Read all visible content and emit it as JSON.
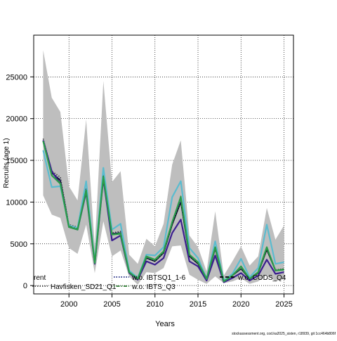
{
  "chart_data": {
    "type": "line",
    "xlabel": "Years",
    "ylabel": "Recruits (age 1)",
    "xlim": [
      1995.9,
      2026.1
    ],
    "ylim": [
      -1000,
      30000
    ],
    "x_ticks": [
      2000,
      2005,
      2010,
      2015,
      2020,
      2025
    ],
    "y_ticks": [
      0,
      5000,
      10000,
      15000,
      20000,
      25000
    ],
    "grid": true,
    "legend_placement": "bottom",
    "x": [
      1997,
      1998,
      1999,
      2000,
      2001,
      2002,
      2003,
      2004,
      2005,
      2006,
      2007,
      2008,
      2009,
      2010,
      2011,
      2012,
      2013,
      2014,
      2015,
      2016,
      2017,
      2018,
      2019,
      2020,
      2021,
      2022,
      2023,
      2024,
      2025
    ],
    "band": {
      "color": "#bebebe",
      "upper": [
        28200,
        22500,
        20800,
        11900,
        10200,
        19900,
        4700,
        24500,
        12400,
        13700,
        3700,
        2600,
        5600,
        4700,
        7400,
        14500,
        17400,
        6000,
        4600,
        1700,
        8900,
        1200,
        2900,
        4700,
        2400,
        3500,
        9300,
        5500,
        7200
      ],
      "lower": [
        10800,
        8500,
        8100,
        4500,
        3800,
        7300,
        1500,
        7700,
        3500,
        4200,
        1100,
        100,
        1600,
        1500,
        2100,
        4700,
        4800,
        1300,
        700,
        200,
        1100,
        300,
        500,
        900,
        200,
        500,
        1300,
        500,
        800
      ]
    },
    "series": [
      {
        "name": "",
        "color": "#000000",
        "dash": "solid",
        "values": [
          17400,
          13500,
          12600,
          7200,
          6900,
          11500,
          2700,
          13200,
          6200,
          6300,
          1600,
          800,
          3300,
          2900,
          3900,
          7300,
          10000,
          3500,
          2600,
          700,
          4400,
          500,
          1200,
          2000,
          800,
          1500,
          4300,
          1800,
          1900
        ]
      },
      {
        "name": "Havfisken_SD21_Q1",
        "color": "#444444",
        "dash": "dotted",
        "values": [
          17600,
          13700,
          13000,
          7300,
          7000,
          11600,
          2800,
          13400,
          6300,
          6500,
          1700,
          900,
          3400,
          3000,
          4000,
          7500,
          10300,
          3600,
          2700,
          800,
          4500,
          600,
          1300,
          2100,
          900,
          1600,
          4600,
          1900,
          2000
        ]
      },
      {
        "name": "w.o. IBTSQ1_1-6",
        "color": "#1a237e",
        "dash": "dotted",
        "values": [
          17300,
          13600,
          12700,
          7200,
          6900,
          11600,
          2700,
          13300,
          6200,
          6400,
          1700,
          800,
          3300,
          2900,
          3900,
          7400,
          10100,
          3500,
          2600,
          700,
          4400,
          500,
          1200,
          2000,
          800,
          1500,
          4400,
          1800,
          1900
        ]
      },
      {
        "name": "w.o. IBTS_Q3",
        "color": "#2e7d32",
        "dash": "dotdash",
        "values": [
          17300,
          13200,
          12300,
          7100,
          6800,
          11400,
          2700,
          13100,
          6100,
          6300,
          1600,
          800,
          3400,
          3000,
          4000,
          7600,
          10700,
          3600,
          2700,
          800,
          4600,
          500,
          1200,
          2100,
          800,
          1500,
          4500,
          1800,
          2000
        ]
      },
      {
        "name": "",
        "color": "#3b1f8f",
        "dash": "solid",
        "values": [
          17400,
          13700,
          12200,
          7000,
          6700,
          11200,
          2600,
          12800,
          5400,
          6000,
          1500,
          700,
          2900,
          2500,
          3300,
          6300,
          7900,
          2900,
          2300,
          600,
          3600,
          400,
          900,
          1500,
          600,
          1200,
          3100,
          1400,
          1600
        ]
      },
      {
        "name": "",
        "color": "#5bbccf",
        "dash": "solid",
        "values": [
          16200,
          11800,
          11900,
          7200,
          6900,
          12500,
          2800,
          14100,
          6700,
          7400,
          1800,
          900,
          3700,
          3600,
          4600,
          10600,
          12500,
          4500,
          3300,
          800,
          5300,
          600,
          1400,
          3200,
          1000,
          2100,
          7300,
          2600,
          2800
        ]
      },
      {
        "name": "",
        "color": "#2a9d4a",
        "dash": "solid",
        "values": [
          17300,
          13200,
          12200,
          7000,
          6700,
          11400,
          2700,
          13000,
          6100,
          6200,
          1600,
          800,
          3500,
          3100,
          4100,
          7600,
          10600,
          3700,
          2800,
          800,
          4600,
          500,
          1200,
          2300,
          800,
          1600,
          4600,
          1800,
          1900
        ]
      }
    ],
    "legend": [
      {
        "label": "rent",
        "color": "#000000",
        "dash": "solid"
      },
      {
        "label": "Havfisken_SD21_Q1",
        "color": "#444444",
        "dash": "dotted"
      },
      {
        "label": "w.o. IBTSQ1_1-6",
        "color": "#1a237e",
        "dash": "dotted"
      },
      {
        "label": "w.o. IBTS_Q3",
        "color": "#2e7d32",
        "dash": "dotdash"
      },
      {
        "label": "w.o. CODS_Q4",
        "color": "#000000",
        "dash": "dashed"
      }
    ]
  },
  "footer": "stockassessment.org, cod.ka2025_sisten, r18939, git 1cc464b806f"
}
